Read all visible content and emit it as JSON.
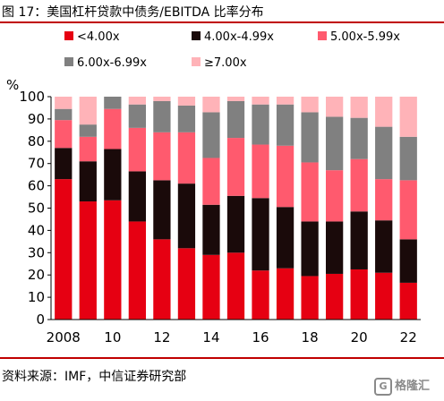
{
  "title": "图 17：美国杠杆贷款中债务/EBITDA 比率分布",
  "source": "资料来源：IMF，中信证券研究部",
  "watermark": "格隆汇",
  "colors": {
    "title_rule": "#c00000",
    "axis": "#000000"
  },
  "chart_data": {
    "type": "bar",
    "stacked": true,
    "ylim": [
      0,
      100
    ],
    "yticks": [
      0,
      10,
      20,
      30,
      40,
      50,
      60,
      70,
      80,
      90,
      100
    ],
    "ylabel": "",
    "xlabel": "",
    "x_unit_label": "%",
    "categories": [
      "2008",
      "2009",
      "2010",
      "2011",
      "2012",
      "2013",
      "2014",
      "2015",
      "2016",
      "2017",
      "2018",
      "2019",
      "2020",
      "2021",
      "2022"
    ],
    "xtick_labels": [
      "2008",
      "",
      "10",
      "",
      "12",
      "",
      "14",
      "",
      "16",
      "",
      "18",
      "",
      "20",
      "",
      "22"
    ],
    "legend_position": "top",
    "series": [
      {
        "name": "<4.00x",
        "color": "#e60012",
        "values": [
          63,
          53,
          53.5,
          44,
          36,
          32,
          29,
          30,
          22,
          23,
          19.5,
          20.5,
          22.5,
          21,
          16.5
        ]
      },
      {
        "name": "4.00x-4.99x",
        "color": "#1a0a0a",
        "values": [
          14,
          18,
          23,
          22.5,
          26.5,
          29,
          22.5,
          25.5,
          32.5,
          27.5,
          24.5,
          23.5,
          26,
          23.5,
          19.5
        ]
      },
      {
        "name": "5.00x-5.99x",
        "color": "#ff5a6e",
        "values": [
          12.5,
          11,
          18,
          19.5,
          21.5,
          23,
          21,
          26,
          24,
          27.5,
          26.5,
          23,
          23.5,
          18.5,
          26.5
        ]
      },
      {
        "name": "6.00x-6.99x",
        "color": "#808080",
        "values": [
          5,
          5.5,
          5.5,
          10.5,
          14,
          12,
          20.5,
          16.5,
          18,
          18.5,
          22.5,
          24,
          18.5,
          23.5,
          19.5
        ]
      },
      {
        "name": "≥7.00x",
        "color": "#ffb3b8",
        "values": [
          5.5,
          12.5,
          0,
          3.5,
          2,
          4,
          7,
          2,
          3.5,
          3.5,
          7,
          9,
          9.5,
          13.5,
          18
        ]
      }
    ]
  }
}
